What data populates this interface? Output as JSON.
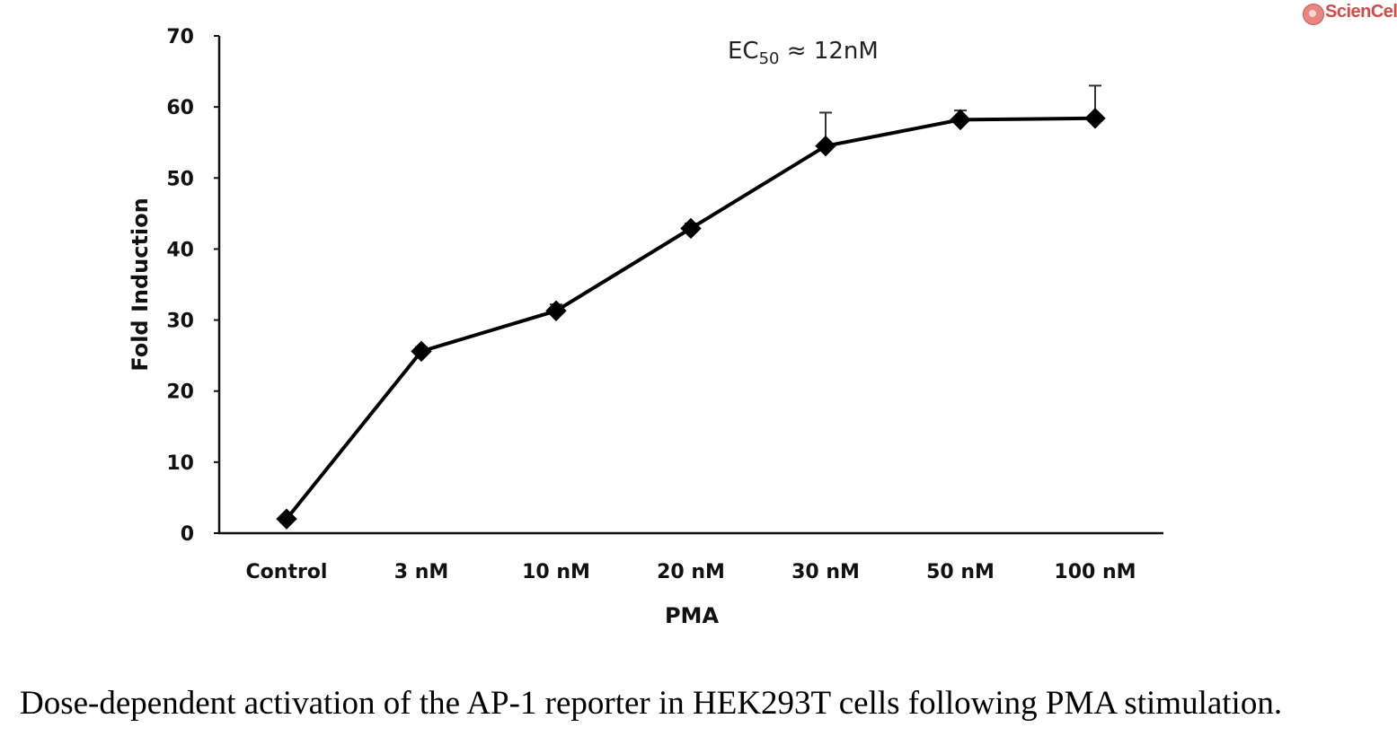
{
  "logo": {
    "text": "ScienCell",
    "color": "#d64a45"
  },
  "caption": "Dose-dependent activation of the AP-1 reporter in HEK293T cells following PMA stimulation.",
  "chart_data": {
    "type": "line",
    "title": "",
    "annotation": {
      "prefix": "EC",
      "subscript": "50",
      "suffix": " ≈ 12nM"
    },
    "xlabel": "PMA",
    "ylabel": "Fold Induction",
    "categories": [
      "Control",
      "3 nM",
      "10 nM",
      "20 nM",
      "30 nM",
      "50 nM",
      "100 nM"
    ],
    "ylim": [
      0,
      70
    ],
    "yticks": [
      0,
      10,
      20,
      30,
      40,
      50,
      60,
      70
    ],
    "grid": false,
    "legend": "none",
    "series": [
      {
        "values": [
          2,
          25.6,
          31.3,
          42.9,
          54.5,
          58.2,
          58.4
        ],
        "error_upper": [
          0.3,
          0.6,
          0.9,
          0.7,
          4.7,
          1.3,
          4.6
        ],
        "color": "#000000",
        "marker": "diamond"
      }
    ]
  }
}
